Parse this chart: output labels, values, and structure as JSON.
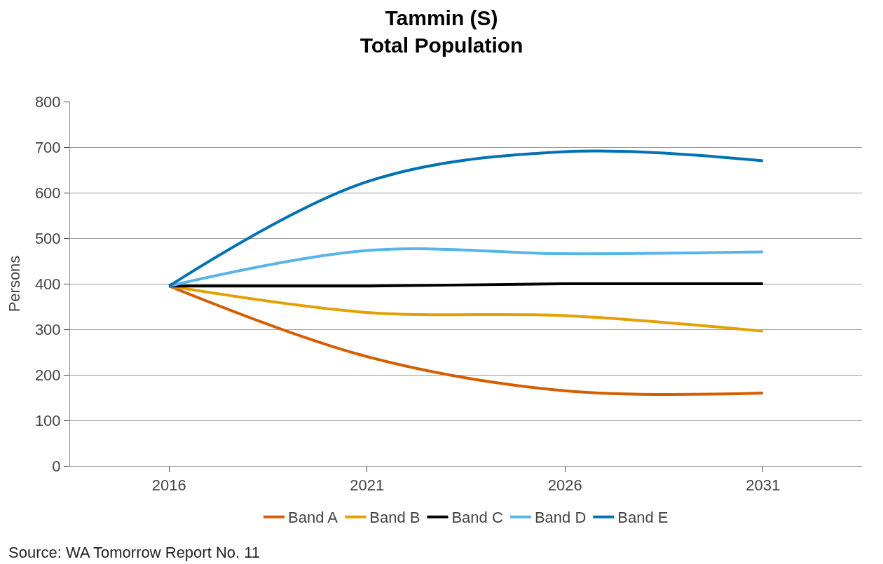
{
  "chart_data": {
    "type": "line",
    "title": "Tammin (S)\nTotal Population",
    "ylabel": "Persons",
    "categories": [
      "2016",
      "2021",
      "2026",
      "2031"
    ],
    "series": [
      {
        "name": "Band A",
        "color": "#d55e00",
        "values": [
          395,
          240,
          165,
          160
        ]
      },
      {
        "name": "Band B",
        "color": "#e69f00",
        "values": [
          395,
          337,
          330,
          296
        ]
      },
      {
        "name": "Band C",
        "color": "#000000",
        "values": [
          395,
          395,
          400,
          400
        ]
      },
      {
        "name": "Band D",
        "color": "#56b4e9",
        "values": [
          395,
          473,
          466,
          470
        ]
      },
      {
        "name": "Band E",
        "color": "#0072b2",
        "values": [
          395,
          624,
          690,
          670
        ]
      }
    ],
    "ylim": [
      0,
      800
    ],
    "yticks": [
      0,
      100,
      200,
      300,
      400,
      500,
      600,
      700,
      800
    ],
    "grid": "y",
    "legend": "bottom",
    "marker": "none",
    "line_style": "solid",
    "annotations": [
      "Source: WA Tomorrow Report No. 11"
    ]
  }
}
